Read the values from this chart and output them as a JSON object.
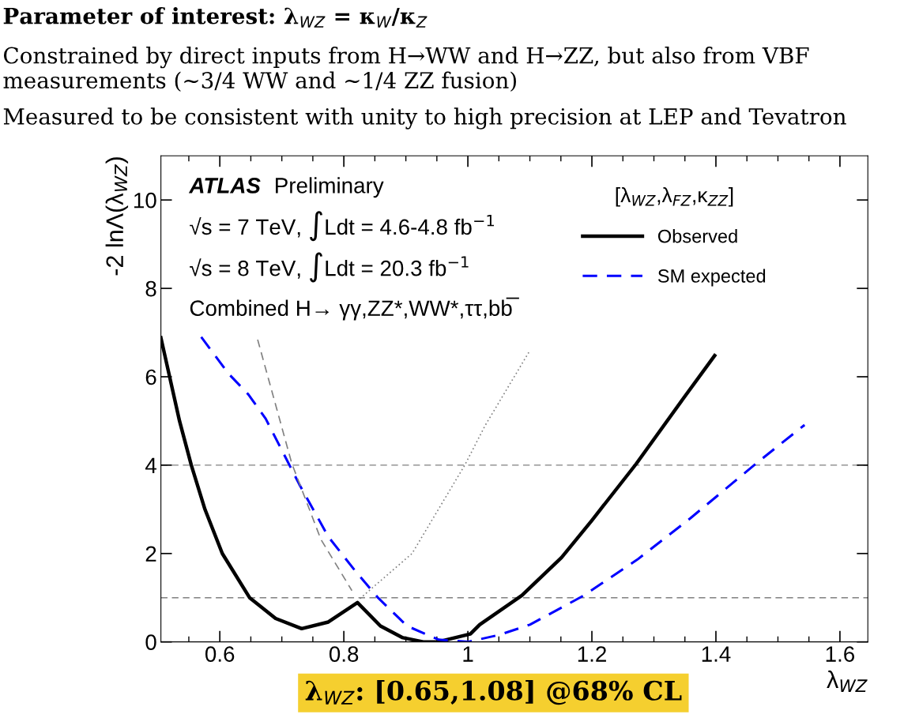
{
  "chart_data": {
    "type": "line",
    "xlabel": "λ$_{WZ}$",
    "ylabel": "-2 lnΛ(λ$_{WZ}$)",
    "legend_title": "[λ$_{WZ}$,λ$_{FZ}$,κ$_{ZZ}$]",
    "annotations": [
      "Parameter of interest: λ$_{WZ}$ = κ$_{W}$/κ$_{Z}$",
      "Constrained by direct inputs from H→WW and H→ZZ, but also from VBF measurements (~3/4 WW and ~1/4 ZZ fusion)",
      "Measured to be consistent with unity to high precision at LEP and Tevatron",
      "ATLAS",
      "Preliminary",
      "√s = 7 TeV, ∫Ldt = 4.6-4.8 fb$^{−1}$",
      "√s = 8 TeV, ∫Ldt = 20.3 fb$^{−1}$",
      "Combined H→ γγ,ZZ*,WW*,ττ,bb̅",
      "λ$_{WZ}$: [0.65,1.08] @68% CL"
    ],
    "series": [
      {
        "name": "Observed",
        "color": "#000000",
        "line_style": "solid",
        "x": [
          0.505,
          0.535,
          0.554,
          0.576,
          0.604,
          0.648,
          0.69,
          0.732,
          0.775,
          0.822,
          0.859,
          0.894,
          0.928,
          0.952,
          0.966,
          1.004,
          1.019,
          1.087,
          1.151,
          1.2,
          1.271,
          1.346,
          1.398
        ],
        "values": [
          6.88,
          5.0,
          4.0,
          3.0,
          2.0,
          1.0,
          0.53,
          0.3,
          0.45,
          0.89,
          0.36,
          0.1,
          0.0,
          0.0,
          0.05,
          0.18,
          0.39,
          1.05,
          1.91,
          2.75,
          4.02,
          5.48,
          6.48
        ]
      },
      {
        "name": "SM expected",
        "color": "#0000ff",
        "line_style": "dashed",
        "x": [
          0.57,
          0.614,
          0.646,
          0.674,
          0.728,
          0.775,
          0.817,
          0.855,
          0.902,
          0.953,
          1.0,
          1.051,
          1.1,
          1.187,
          1.273,
          1.359,
          1.465,
          1.543
        ],
        "values": [
          6.9,
          6.07,
          5.6,
          5.05,
          3.57,
          2.38,
          1.63,
          1.0,
          0.36,
          0.05,
          0.0,
          0.16,
          0.39,
          1.05,
          1.86,
          2.8,
          4.04,
          4.91
        ]
      },
      {
        "color": "#808080",
        "line_style": "dashed",
        "x": [
          0.661,
          0.716,
          0.763,
          0.813
        ],
        "values": [
          6.84,
          4.04,
          2.32,
          1.16
        ]
      },
      {
        "color": "#808080",
        "line_style": "dotted",
        "x": [
          0.826,
          0.91,
          0.995,
          1.028,
          1.099
        ],
        "values": [
          0.98,
          2.0,
          4.0,
          4.9,
          6.57
        ]
      }
    ],
    "xlim": [
      0.505,
      1.645
    ],
    "ylim": [
      0,
      11
    ],
    "xticks": [
      0.6,
      0.8,
      1,
      1.2,
      1.4,
      1.6
    ],
    "yticks": [
      0,
      2,
      4,
      6,
      8,
      10
    ],
    "ref_lines": [
      {
        "axis": "y",
        "value": 1,
        "color": "#808080",
        "line_style": "dashed"
      },
      {
        "axis": "y",
        "value": 4,
        "color": "#808080",
        "line_style": "dashed"
      }
    ],
    "legend": "top right",
    "grid": false,
    "marker": "none"
  }
}
